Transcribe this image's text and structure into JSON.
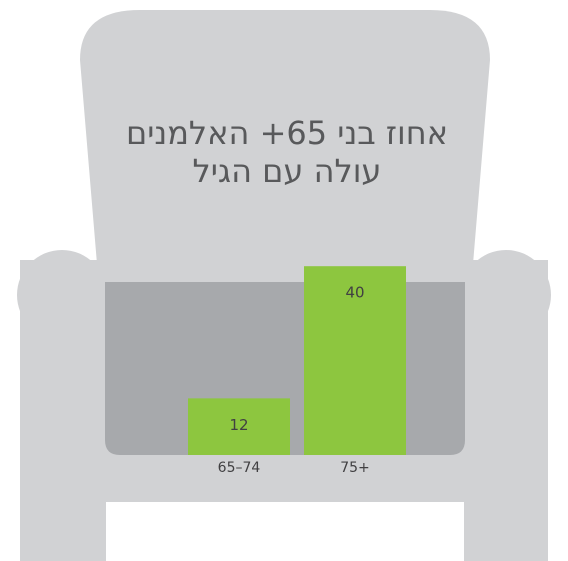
{
  "chart_data": {
    "type": "bar",
    "title_lines": [
      "אחוז בני 65+ האלמנים",
      "עולה עם הגיל"
    ],
    "categories": [
      "65–74",
      "75+"
    ],
    "values": [
      12,
      40
    ],
    "color": "#8dc63f"
  }
}
